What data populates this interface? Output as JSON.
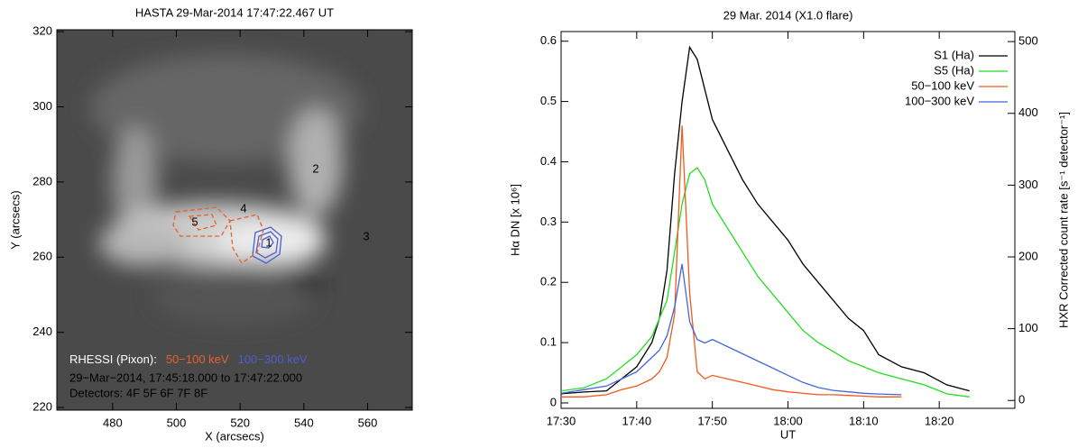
{
  "chart_data": [
    {
      "type": "image",
      "title": "HASTA  29-Mar-2014  17:47:22.467 UT",
      "xlabel": "X (arcsecs)",
      "ylabel": "Y (arcsecs)",
      "xlim": [
        462.5,
        574
      ],
      "ylim": [
        219.3,
        320.5
      ],
      "xticks": [
        480,
        500,
        520,
        540,
        560
      ],
      "yticks": [
        220,
        240,
        260,
        280,
        300,
        320
      ],
      "annotations": [
        "1",
        "2",
        "3",
        "4",
        "5"
      ],
      "legend": {
        "title": "RHESSI (Pixon):",
        "items": [
          {
            "name": "50−100 keV",
            "color": "#e8602c"
          },
          {
            "name": "100−300 keV",
            "color": "#4a5fd0"
          }
        ],
        "lines": [
          "29−Mar−2014, 17:45:18.000 to 17:47:22.000",
          "Detectors: 4F 5F 6F 7F 8F"
        ]
      }
    },
    {
      "type": "line",
      "title": "29 Mar. 2014 (X1.0 flare)",
      "xlabel": "UT",
      "ylabel": "Hα DN [x 10⁶]",
      "y2label": "HXR Corrected count rate [s⁻¹ detector⁻¹]",
      "x": [
        "17:30",
        "17:33",
        "17:36",
        "17:38",
        "17:40",
        "17:42",
        "17:43",
        "17:44",
        "17:45",
        "17:46",
        "17:47",
        "17:48",
        "17:49",
        "17:50",
        "17:52",
        "17:54",
        "17:56",
        "17:58",
        "18:00",
        "18:02",
        "18:04",
        "18:06",
        "18:08",
        "18:10",
        "18:12",
        "18:15",
        "18:18",
        "18:21",
        "18:24"
      ],
      "xlim": [
        "17:30",
        "18:30"
      ],
      "xticks": [
        "17:30",
        "17:40",
        "17:50",
        "18:00",
        "18:10",
        "18:20"
      ],
      "ylim": [
        -0.009,
        0.616
      ],
      "yticks": [
        0.0,
        0.1,
        0.2,
        0.3,
        0.4,
        0.5,
        0.6
      ],
      "y2lim": [
        -11,
        514
      ],
      "y2ticks": [
        0,
        100,
        200,
        300,
        400,
        500
      ],
      "legend": "upper right",
      "series": [
        {
          "name": "S1 (Ha)",
          "color": "#000000",
          "values": [
            0.015,
            0.018,
            0.02,
            0.04,
            0.06,
            0.1,
            0.14,
            0.22,
            0.38,
            0.5,
            0.59,
            0.57,
            0.52,
            0.47,
            0.42,
            0.37,
            0.33,
            0.3,
            0.27,
            0.23,
            0.2,
            0.17,
            0.14,
            0.12,
            0.08,
            0.06,
            0.05,
            0.03,
            0.02
          ]
        },
        {
          "name": "S5 (Ha)",
          "color": "#22dd22",
          "values": [
            0.02,
            0.025,
            0.04,
            0.06,
            0.08,
            0.11,
            0.14,
            0.17,
            0.25,
            0.33,
            0.38,
            0.39,
            0.37,
            0.33,
            0.29,
            0.25,
            0.21,
            0.18,
            0.15,
            0.12,
            0.1,
            0.085,
            0.07,
            0.06,
            0.05,
            0.04,
            0.03,
            0.015,
            0.01
          ]
        },
        {
          "name": "50−100 keV",
          "color": "#f05a1a",
          "axis": "y2",
          "values": [
            5,
            5,
            8,
            15,
            20,
            30,
            40,
            60,
            120,
            383,
            150,
            40,
            30,
            35,
            30,
            25,
            20,
            15,
            12,
            10,
            8,
            8,
            7,
            6,
            5,
            5,
            null,
            null,
            null
          ]
        },
        {
          "name": "100−300 keV",
          "color": "#4466dd",
          "axis": "y2",
          "values": [
            10,
            15,
            20,
            30,
            40,
            60,
            70,
            90,
            130,
            190,
            110,
            85,
            80,
            85,
            75,
            65,
            55,
            45,
            35,
            25,
            18,
            14,
            12,
            10,
            9,
            8,
            null,
            null,
            null
          ]
        }
      ]
    }
  ]
}
